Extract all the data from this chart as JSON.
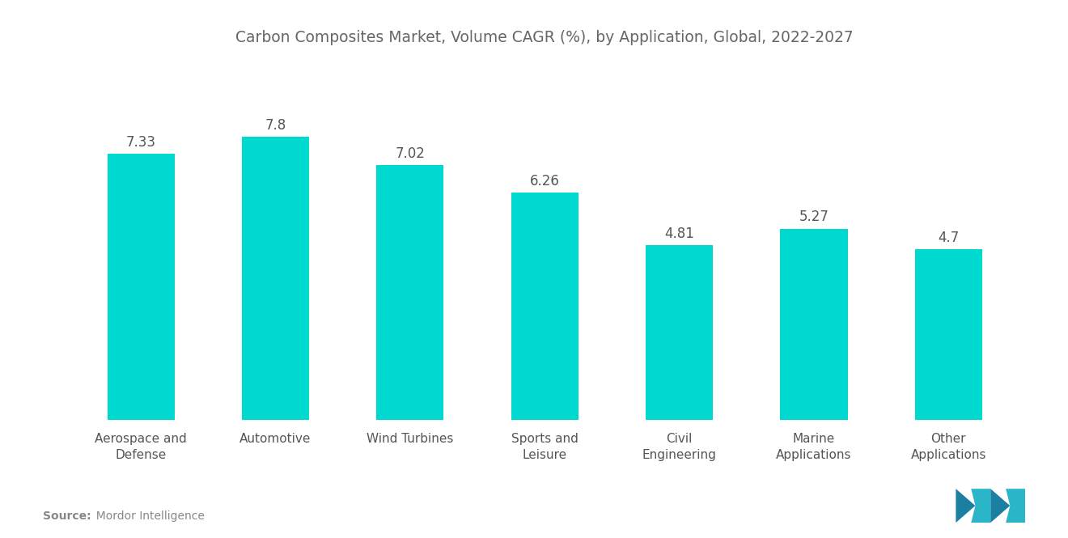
{
  "title": "Carbon Composites Market, Volume CAGR (%), by Application, Global, 2022-2027",
  "categories": [
    "Aerospace and\nDefense",
    "Automotive",
    "Wind Turbines",
    "Sports and\nLeisure",
    "Civil\nEngineering",
    "Marine\nApplications",
    "Other\nApplications"
  ],
  "values": [
    7.33,
    7.8,
    7.02,
    6.26,
    4.81,
    5.27,
    4.7
  ],
  "bar_color": "#00D9D0",
  "value_labels": [
    "7.33",
    "7.8",
    "7.02",
    "6.26",
    "4.81",
    "5.27",
    "4.7"
  ],
  "source_label_bold": "Source:",
  "source_label_normal": "  Mordor Intelligence",
  "ylim": [
    0,
    9.8
  ],
  "background_color": "#ffffff",
  "title_color": "#666666",
  "label_color": "#555555",
  "value_color": "#555555",
  "title_fontsize": 13.5,
  "tick_fontsize": 11,
  "value_fontsize": 12,
  "bar_width": 0.5,
  "logo_colors": [
    "#1a7fa0",
    "#2bb5c8",
    "#1a7fa0",
    "#2bb5c8"
  ]
}
